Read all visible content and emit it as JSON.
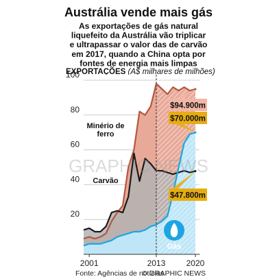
{
  "chart_data": {
    "type": "line",
    "title": "Austrália vende mais gás",
    "subtitle_lines": [
      "As exportações de gás natural",
      "liquefeito da Austrália vão triplicar",
      "e ultrapassar o valor das de carvão",
      "em 2017, quando a China opta por",
      "fontes de energia mais limpas"
    ],
    "y_label": "EXPORTAÇÕES",
    "y_label_units": "(A$ milhares de milhões)",
    "x": [
      2000,
      2001,
      2002,
      2003,
      2004,
      2005,
      2006,
      2007,
      2008,
      2009,
      2010,
      2011,
      2012,
      2013,
      2014,
      2015,
      2016,
      2017,
      2018,
      2019,
      2020
    ],
    "series": [
      {
        "name": "Minério de ferro",
        "color": "#b5553f",
        "fill": "#e8a999",
        "values": [
          9,
          10,
          9,
          10,
          12,
          19,
          24,
          28,
          50,
          60,
          82,
          80,
          85,
          98,
          95,
          92,
          96,
          94,
          96,
          94,
          94.9
        ],
        "value_labels": [
          null,
          null,
          null,
          null,
          null,
          null,
          null,
          null,
          null,
          null,
          null,
          null,
          null,
          null,
          null,
          null,
          null,
          null,
          null,
          null,
          "$94.900m"
        ]
      },
      {
        "name": "Carvão",
        "color": "#1a1a1a",
        "fill": "#b3b3b3",
        "values": [
          14,
          15,
          13,
          13,
          16,
          24,
          25,
          24,
          33,
          58,
          42,
          55,
          52,
          48,
          48,
          47,
          46,
          47,
          48,
          47,
          47.8
        ],
        "value_labels": [
          null,
          null,
          null,
          null,
          null,
          null,
          null,
          null,
          null,
          null,
          null,
          null,
          null,
          null,
          null,
          null,
          null,
          null,
          null,
          null,
          "$47.800m"
        ]
      },
      {
        "name": "Gás",
        "color": "#1ea5e0",
        "fill": "#bfe6f7",
        "values": [
          5,
          6,
          6,
          6,
          7,
          8,
          10,
          11,
          12,
          13,
          13,
          14,
          16,
          17,
          19,
          22,
          35,
          50,
          64,
          69,
          70
        ],
        "value_labels": [
          null,
          null,
          null,
          null,
          null,
          null,
          null,
          null,
          null,
          null,
          null,
          null,
          null,
          null,
          null,
          null,
          null,
          null,
          null,
          null,
          "$70.000m"
        ]
      }
    ],
    "forecast_from": 2013,
    "xlim": [
      2000,
      2020.8
    ],
    "xticks": [
      2001,
      2013,
      2020
    ],
    "ylim": [
      0,
      100
    ],
    "yticks": [
      20,
      40,
      60,
      80,
      100
    ],
    "grid": true,
    "source": "Fonte: Agências de notícias",
    "credit": "© GRAPHIC NEWS",
    "watermark": "GRAPHIC NEWS"
  }
}
